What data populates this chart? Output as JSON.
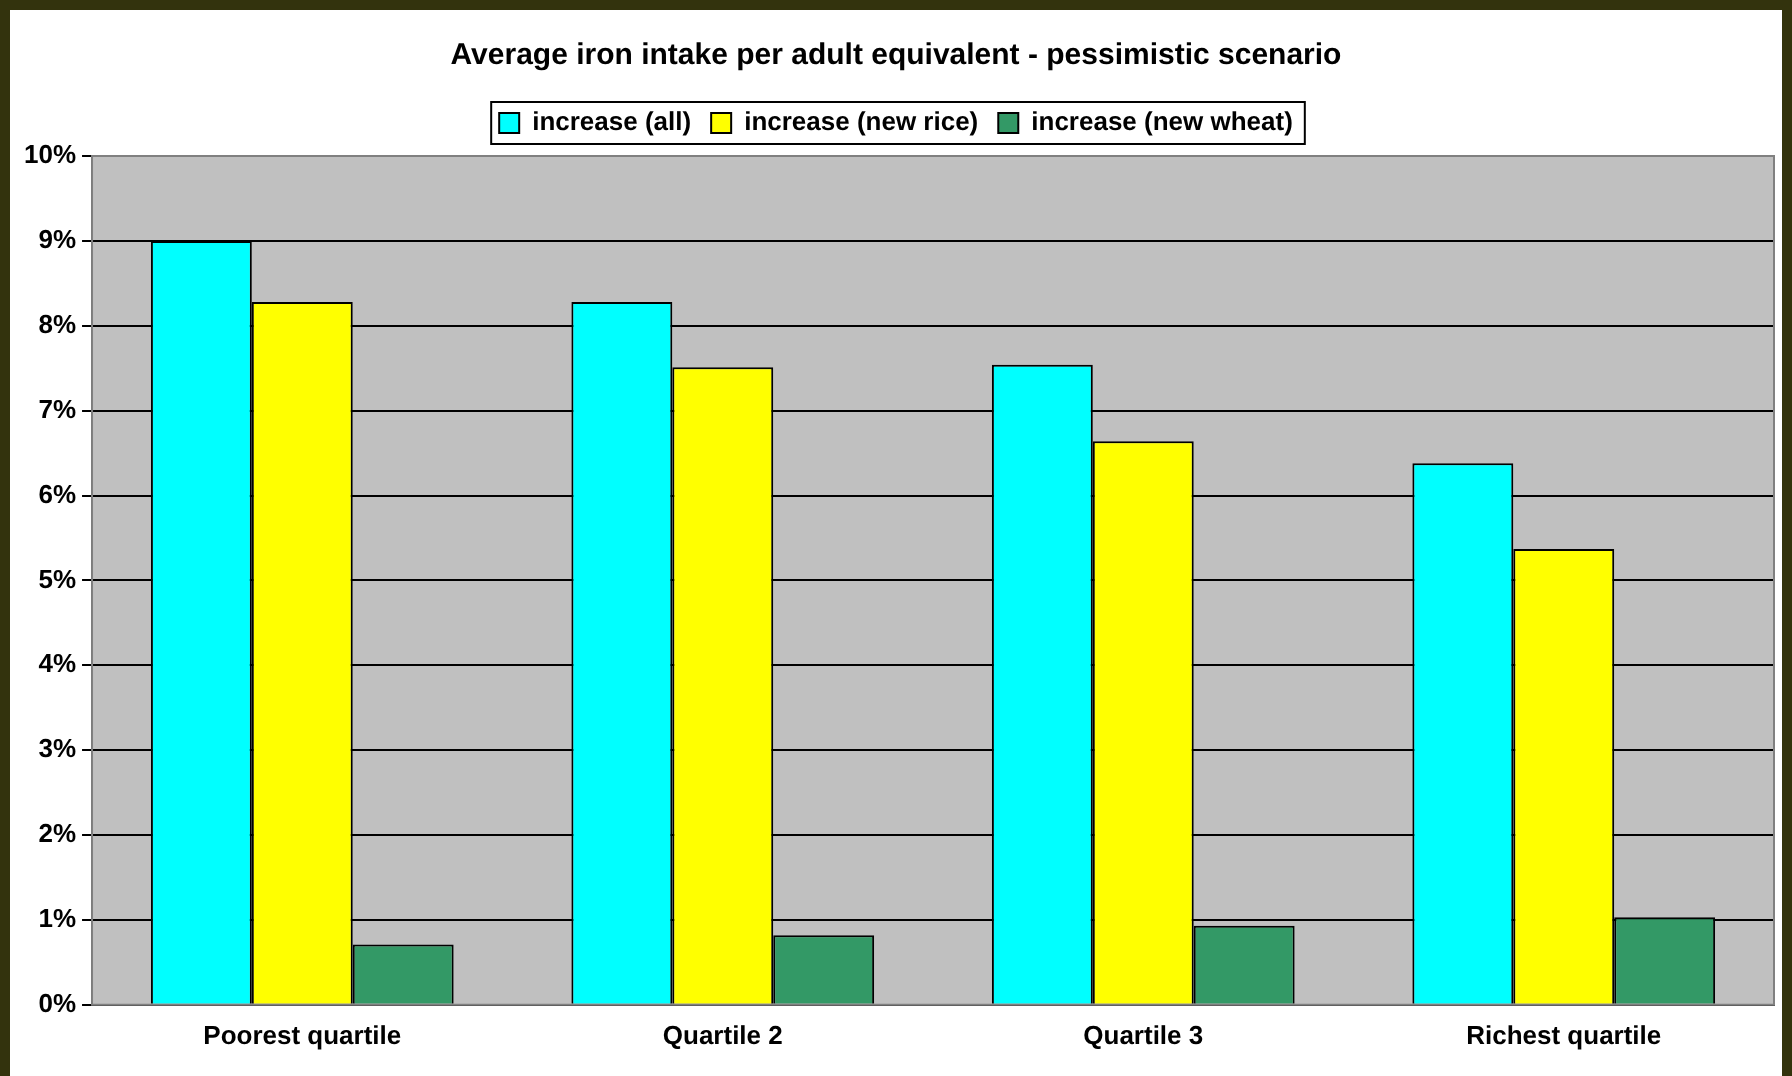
{
  "chart_data": {
    "type": "bar",
    "title": "Average iron intake per adult equivalent - pessimistic scenario",
    "categories": [
      "Poorest quartile",
      "Quartile 2",
      "Quartile 3",
      "Richest quartile"
    ],
    "series": [
      {
        "name": "increase (all)",
        "color": "#00ffff",
        "values": [
          9.0,
          8.28,
          7.54,
          6.38
        ]
      },
      {
        "name": "increase (new rice)",
        "color": "#ffff00",
        "values": [
          8.28,
          7.51,
          6.64,
          5.37
        ]
      },
      {
        "name": "increase (new wheat)",
        "color": "#339966",
        "values": [
          0.71,
          0.82,
          0.93,
          1.03
        ]
      }
    ],
    "ylim": [
      0,
      10
    ],
    "yticks": [
      {
        "value": 0,
        "label": "0%"
      },
      {
        "value": 1,
        "label": "1%"
      },
      {
        "value": 2,
        "label": "2%"
      },
      {
        "value": 3,
        "label": "3%"
      },
      {
        "value": 4,
        "label": "4%"
      },
      {
        "value": 5,
        "label": "5%"
      },
      {
        "value": 6,
        "label": "6%"
      },
      {
        "value": 7,
        "label": "7%"
      },
      {
        "value": 8,
        "label": "8%"
      },
      {
        "value": 9,
        "label": "9%"
      },
      {
        "value": 10,
        "label": "10%"
      }
    ],
    "grid": "y",
    "legend": "top"
  }
}
